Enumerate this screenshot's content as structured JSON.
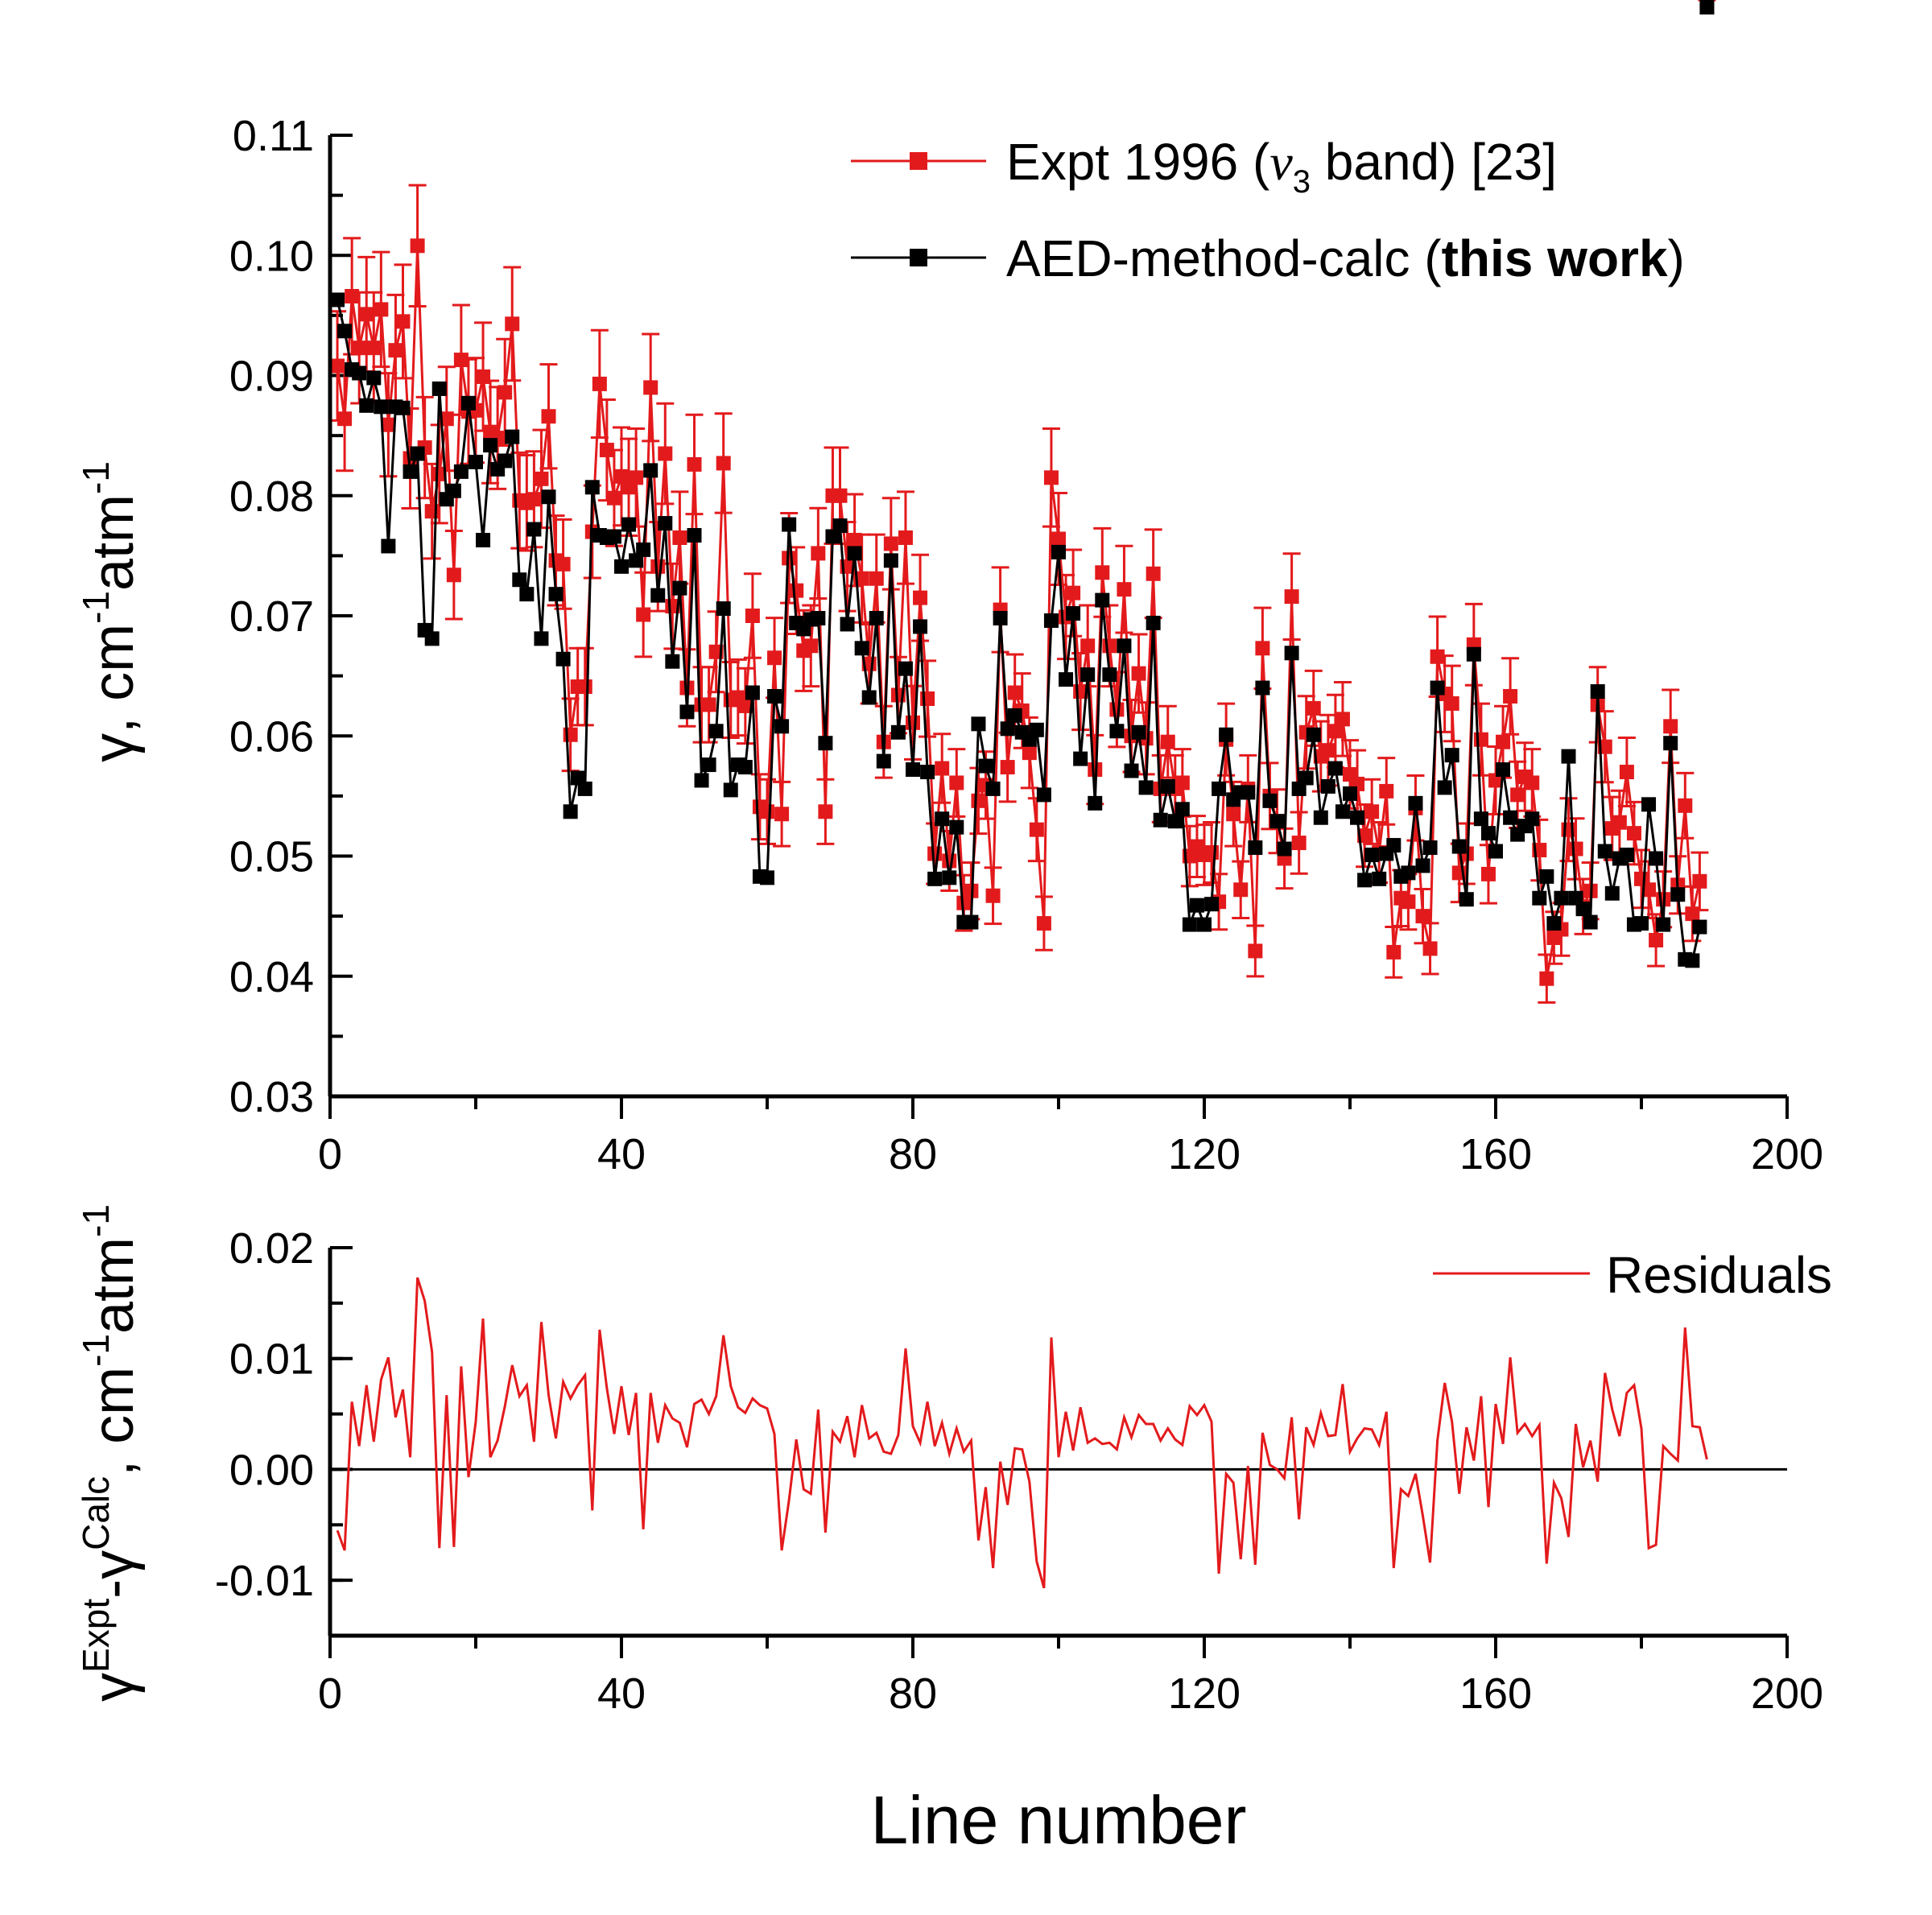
{
  "chart_data": [
    {
      "type": "line",
      "panel": "top",
      "xlabel": "",
      "ylabel": "γ, cm-1atm-1",
      "xlim": [
        0,
        200
      ],
      "ylim": [
        0.03,
        0.11
      ],
      "xticks": [
        "0",
        "40",
        "80",
        "120",
        "160",
        "200"
      ],
      "yticks": [
        "0.03",
        "0.04",
        "0.05",
        "0.06",
        "0.07",
        "0.08",
        "0.09",
        "0.10",
        "0.11"
      ],
      "legend_position": "top-right",
      "series": [
        {
          "name": "Expt 1996 (ν3 band) [23]",
          "legend_parts": [
            "Expt 1996 (",
            "ν",
            "3",
            " band) [23]"
          ],
          "color": "#e31a1c",
          "error_bars": true
        },
        {
          "name": "AED-method-calc (this work)",
          "legend_parts": [
            "AED-method-calc (",
            "this work",
            ")"
          ],
          "color": "#000000",
          "error_bars": false
        }
      ],
      "x": [
        1,
        2,
        3,
        4,
        5,
        6,
        7,
        8,
        9,
        10,
        11,
        12,
        13,
        14,
        15,
        16,
        17,
        18,
        19,
        20,
        21,
        22,
        23,
        24,
        25,
        26,
        27,
        28,
        29,
        30,
        31,
        32,
        33,
        34,
        35,
        36,
        37,
        38,
        39,
        40,
        41,
        42,
        43,
        44,
        45,
        46,
        47,
        48,
        49,
        50,
        51,
        52,
        53,
        54,
        55,
        56,
        57,
        58,
        59,
        60,
        61,
        62,
        63,
        64,
        65,
        66,
        67,
        68,
        69,
        70,
        71,
        72,
        73,
        74,
        75,
        76,
        77,
        78,
        79,
        80,
        81,
        82,
        83,
        84,
        85,
        86,
        87,
        88,
        89,
        90,
        91,
        92,
        93,
        94,
        95,
        96,
        97,
        98,
        99,
        100,
        101,
        102,
        103,
        104,
        105,
        106,
        107,
        108,
        109,
        110,
        111,
        112,
        113,
        114,
        115,
        116,
        117,
        118,
        119,
        120,
        121,
        122,
        123,
        124,
        125,
        126,
        127,
        128,
        129,
        130,
        131,
        132,
        133,
        134,
        135,
        136,
        137,
        138,
        139,
        140,
        141,
        142,
        143,
        144,
        145,
        146,
        147,
        148,
        149,
        150,
        151,
        152,
        153,
        154,
        155,
        156,
        157,
        158,
        159,
        160,
        161,
        162,
        163,
        164,
        165,
        166,
        167,
        168,
        169,
        170,
        171,
        172,
        173,
        174,
        175,
        176,
        177,
        178,
        179,
        180,
        181,
        182,
        183,
        184,
        185,
        186,
        187,
        188,
        189
      ],
      "calc": [
        0.0963,
        0.0937,
        0.0905,
        0.0902,
        0.0875,
        0.0898,
        0.0874,
        0.0758,
        0.0874,
        0.0873,
        0.082,
        0.0835,
        0.0688,
        0.0681,
        0.0889,
        0.0797,
        0.0804,
        0.082,
        0.0877,
        0.0828,
        0.0763,
        0.0842,
        0.0822,
        0.0829,
        0.0849,
        0.073,
        0.0718,
        0.0772,
        0.0681,
        0.0799,
        0.0718,
        0.0664,
        0.0537,
        0.0565,
        0.0556,
        0.0807,
        0.0767,
        0.0765,
        0.0766,
        0.0741,
        0.0776,
        0.0746,
        0.0755,
        0.0821,
        0.0717,
        0.0777,
        0.0662,
        0.0723,
        0.062,
        0.0767,
        0.0563,
        0.0576,
        0.0604,
        0.0706,
        0.0555,
        0.0576,
        0.0574,
        0.0636,
        0.0483,
        0.0482,
        0.0633,
        0.0608,
        0.0776,
        0.0694,
        0.0689,
        0.0697,
        0.0698,
        0.0594,
        0.0766,
        0.0775,
        0.0693,
        0.0752,
        0.0673,
        0.0632,
        0.0698,
        0.0579,
        0.0746,
        0.0603,
        0.0656,
        0.0572,
        0.0691,
        0.057,
        0.0481,
        0.0531,
        0.0482,
        0.0524,
        0.0445,
        0.0445,
        0.061,
        0.0575,
        0.0556,
        0.0698,
        0.0606,
        0.0617,
        0.0603,
        0.0597,
        0.0605,
        0.0551,
        0.0696,
        0.0753,
        0.0647,
        0.0702,
        0.0581,
        0.0651,
        0.0544,
        0.0713,
        0.0651,
        0.0604,
        0.0675,
        0.0571,
        0.0603,
        0.0557,
        0.0694,
        0.053,
        0.0558,
        0.0529,
        0.0539,
        0.0443,
        0.0459,
        0.0443,
        0.046,
        0.0556,
        0.0601,
        0.0547,
        0.0553,
        0.0553,
        0.0507,
        0.064,
        0.0546,
        0.0529,
        0.0506,
        0.0669,
        0.0556,
        0.0565,
        0.0601,
        0.0532,
        0.0558,
        0.0573,
        0.0537,
        0.0552,
        0.0532,
        0.048,
        0.0501,
        0.0481,
        0.0502,
        0.0509,
        0.0483,
        0.0486,
        0.0544,
        0.0492,
        0.0507,
        0.064,
        0.0557,
        0.0584,
        0.0508,
        0.0464,
        0.0668,
        0.0531,
        0.0519,
        0.0504,
        0.0572,
        0.0532,
        0.0518,
        0.0525,
        0.0531,
        0.0465,
        0.0483,
        0.0444,
        0.0465,
        0.0583,
        0.0465,
        0.0456,
        0.0445,
        0.0637,
        0.0504,
        0.0469,
        0.0498,
        0.0501,
        0.0443,
        0.0444,
        0.0543,
        0.0498,
        0.0443,
        0.0594,
        0.0468,
        0.0414,
        0.0413,
        0.0441
      ],
      "residuals": [
        -0.0055,
        -0.0073,
        0.0061,
        0.0021,
        0.0076,
        0.0025,
        0.0081,
        0.0101,
        0.0047,
        0.0072,
        0.0011,
        0.0173,
        0.0152,
        0.0106,
        -0.0071,
        0.0067,
        -0.007,
        0.0093,
        -0.0007,
        0.0043,
        0.0136,
        0.0011,
        0.0026,
        0.0057,
        0.0094,
        0.0066,
        0.0076,
        0.0025,
        0.0133,
        0.0067,
        0.0028,
        0.0079,
        0.0064,
        0.0076,
        0.0085,
        -0.0037,
        0.0126,
        0.0073,
        0.0032,
        0.0075,
        0.0031,
        0.0069,
        -0.0054,
        0.0069,
        0.0024,
        0.0058,
        0.0046,
        0.0042,
        0.002,
        0.0059,
        0.0063,
        0.005,
        0.0066,
        0.0121,
        0.0075,
        0.0056,
        0.0051,
        0.0064,
        0.0058,
        0.0055,
        0.0032,
        -0.0073,
        -0.0028,
        0.0027,
        -0.0018,
        -0.0022,
        0.0054,
        -0.0057,
        0.0034,
        0.0025,
        0.0048,
        0.0011,
        0.0058,
        0.0028,
        0.0033,
        0.0016,
        0.0014,
        0.0031,
        0.0109,
        0.0039,
        0.0024,
        0.0061,
        0.0021,
        0.0042,
        0.0014,
        0.0037,
        0.0016,
        0.0026,
        -0.0064,
        -0.0016,
        -0.0089,
        0.0007,
        -0.0032,
        0.0019,
        0.0018,
        -0.0011,
        -0.0083,
        -0.0107,
        0.0119,
        0.0011,
        0.0052,
        0.0017,
        0.0056,
        0.0024,
        0.0028,
        0.0023,
        0.0024,
        0.0018,
        0.0047,
        0.0029,
        0.0049,
        0.0041,
        0.0041,
        0.0026,
        0.0037,
        0.0027,
        0.0022,
        0.0057,
        0.0049,
        0.0058,
        0.0043,
        -0.0094,
        -0.0004,
        -0.0012,
        -0.0081,
        0.0003,
        -0.0086,
        0.0033,
        0.0004,
        0,
        -0.0008,
        0.0047,
        -0.0045,
        0.0038,
        0.0022,
        0.0051,
        0.003,
        0.0031,
        0.0077,
        0.0016,
        0.0028,
        0.0037,
        0.0036,
        0.0022,
        0.0052,
        -0.0089,
        -0.0018,
        -0.0024,
        -0.0004,
        -0.0042,
        -0.0084,
        0.0026,
        0.0078,
        0.0043,
        -0.0022,
        0.0038,
        0.0008,
        0.0066,
        -0.0034,
        0.0059,
        0.0023,
        0.0101,
        0.0033,
        0.0041,
        0.003,
        0.004,
        -0.0085,
        -0.0012,
        -0.0026,
        -0.0061,
        0.0041,
        0.0002,
        0.0026,
        -0.0011,
        0.0087,
        0.0054,
        0.003,
        0.0069,
        0.0076,
        0.0037,
        -0.0071,
        -0.0068,
        0.0021,
        0.0014,
        0.0008,
        0.0128,
        0.0039,
        0.0038,
        0.0009,
        0.0043
      ],
      "error_fraction": 0.05
    },
    {
      "type": "line",
      "panel": "bottom",
      "xlabel": "Line number",
      "ylabel_parts": [
        "γ",
        "Expt",
        "-γ",
        "Calc",
        ", cm",
        "-1",
        "atm",
        "-1"
      ],
      "ylabel": "γExpt-γCalc, cm-1atm-1",
      "xlim": [
        0,
        200
      ],
      "ylim": [
        -0.015,
        0.02
      ],
      "xticks": [
        "0",
        "40",
        "80",
        "120",
        "160",
        "200"
      ],
      "yticks": [
        "-0.01",
        "0.00",
        "0.01",
        "0.02"
      ],
      "reference_line": 0,
      "legend_position": "top-right",
      "series": [
        {
          "name": "Residuals",
          "color": "#e31a1c",
          "source": "residuals"
        }
      ]
    }
  ],
  "top_axis_title_parts": [
    "γ, cm",
    "-1",
    "atm",
    "-1"
  ]
}
